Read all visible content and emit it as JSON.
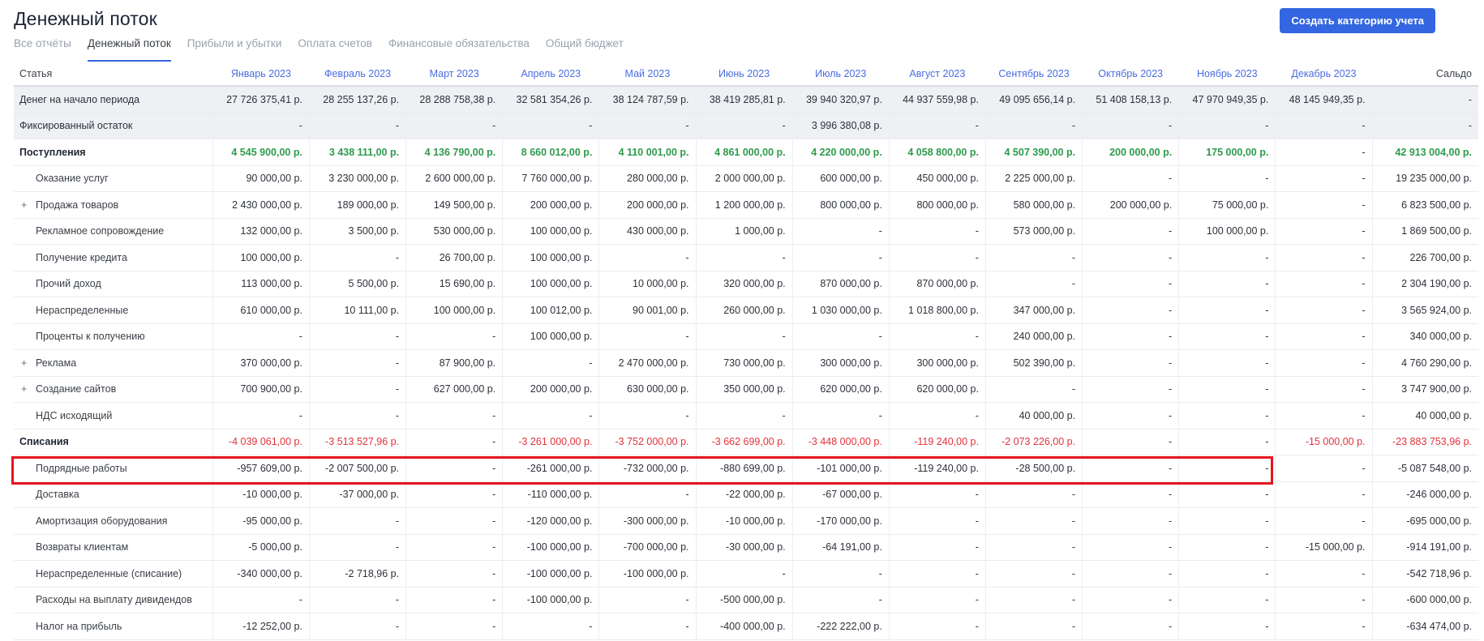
{
  "page_title": "Денежный поток",
  "create_button": "Создать категорию учета",
  "tabs": [
    "Все отчёты",
    "Денежный поток",
    "Прибыли и убытки",
    "Оплата счетов",
    "Финансовые обязательства",
    "Общий бюджет"
  ],
  "table": {
    "header_article": "Статья",
    "months": [
      "Январь 2023",
      "Февраль 2023",
      "Март 2023",
      "Апрель 2023",
      "Май 2023",
      "Июнь 2023",
      "Июль 2023",
      "Август 2023",
      "Сентябрь 2023",
      "Октябрь 2023",
      "Ноябрь 2023",
      "Декабрь 2023"
    ],
    "header_total": "Сальдо",
    "rows": [
      {
        "name": "Денег на начало периода",
        "kind": "shaded",
        "values": [
          "27 726 375,41 р.",
          "28 255 137,26 р.",
          "28 288 758,38 р.",
          "32 581 354,26 р.",
          "38 124 787,59 р.",
          "38 419 285,81 р.",
          "39 940 320,97 р.",
          "44 937 559,98 р.",
          "49 095 656,14 р.",
          "51 408 158,13 р.",
          "47 970 949,35 р.",
          "48 145 949,35 р.",
          "-"
        ]
      },
      {
        "name": "Фиксированный остаток",
        "kind": "shaded",
        "values": [
          "-",
          "-",
          "-",
          "-",
          "-",
          "-",
          "3 996 380,08 р.",
          "-",
          "-",
          "-",
          "-",
          "-",
          "-"
        ]
      },
      {
        "name": "Поступления",
        "kind": "group-inc",
        "values": [
          "4 545 900,00 р.",
          "3 438 111,00 р.",
          "4 136 790,00 р.",
          "8 660 012,00 р.",
          "4 110 001,00 р.",
          "4 861 000,00 р.",
          "4 220 000,00 р.",
          "4 058 800,00 р.",
          "4 507 390,00 р.",
          "200 000,00 р.",
          "175 000,00 р.",
          "-",
          "42 913 004,00 р."
        ]
      },
      {
        "name": "Оказание услуг",
        "kind": "sub",
        "plus": false,
        "values": [
          "90 000,00 р.",
          "3 230 000,00 р.",
          "2 600 000,00 р.",
          "7 760 000,00 р.",
          "280 000,00 р.",
          "2 000 000,00 р.",
          "600 000,00 р.",
          "450 000,00 р.",
          "2 225 000,00 р.",
          "-",
          "-",
          "-",
          "19 235 000,00 р."
        ]
      },
      {
        "name": "Продажа товаров",
        "kind": "sub",
        "plus": true,
        "values": [
          "2 430 000,00 р.",
          "189 000,00 р.",
          "149 500,00 р.",
          "200 000,00 р.",
          "200 000,00 р.",
          "1 200 000,00 р.",
          "800 000,00 р.",
          "800 000,00 р.",
          "580 000,00 р.",
          "200 000,00 р.",
          "75 000,00 р.",
          "-",
          "6 823 500,00 р."
        ]
      },
      {
        "name": "Рекламное сопровождение",
        "kind": "sub",
        "plus": false,
        "values": [
          "132 000,00 р.",
          "3 500,00 р.",
          "530 000,00 р.",
          "100 000,00 р.",
          "430 000,00 р.",
          "1 000,00 р.",
          "-",
          "-",
          "573 000,00 р.",
          "-",
          "100 000,00 р.",
          "-",
          "1 869 500,00 р."
        ]
      },
      {
        "name": "Получение кредита",
        "kind": "sub",
        "plus": false,
        "values": [
          "100 000,00 р.",
          "-",
          "26 700,00 р.",
          "100 000,00 р.",
          "-",
          "-",
          "-",
          "-",
          "-",
          "-",
          "-",
          "-",
          "226 700,00 р."
        ]
      },
      {
        "name": "Прочий доход",
        "kind": "sub",
        "plus": false,
        "values": [
          "113 000,00 р.",
          "5 500,00 р.",
          "15 690,00 р.",
          "100 000,00 р.",
          "10 000,00 р.",
          "320 000,00 р.",
          "870 000,00 р.",
          "870 000,00 р.",
          "-",
          "-",
          "-",
          "-",
          "2 304 190,00 р."
        ]
      },
      {
        "name": "Нераспределенные",
        "kind": "sub",
        "plus": false,
        "values": [
          "610 000,00 р.",
          "10 111,00 р.",
          "100 000,00 р.",
          "100 012,00 р.",
          "90 001,00 р.",
          "260 000,00 р.",
          "1 030 000,00 р.",
          "1 018 800,00 р.",
          "347 000,00 р.",
          "-",
          "-",
          "-",
          "3 565 924,00 р."
        ]
      },
      {
        "name": "Проценты к получению",
        "kind": "sub",
        "plus": false,
        "values": [
          "-",
          "-",
          "-",
          "100 000,00 р.",
          "-",
          "-",
          "-",
          "-",
          "240 000,00 р.",
          "-",
          "-",
          "-",
          "340 000,00 р."
        ]
      },
      {
        "name": "Реклама",
        "kind": "sub",
        "plus": true,
        "values": [
          "370 000,00 р.",
          "-",
          "87 900,00 р.",
          "-",
          "2 470 000,00 р.",
          "730 000,00 р.",
          "300 000,00 р.",
          "300 000,00 р.",
          "502 390,00 р.",
          "-",
          "-",
          "-",
          "4 760 290,00 р."
        ]
      },
      {
        "name": "Создание сайтов",
        "kind": "sub",
        "plus": true,
        "values": [
          "700 900,00 р.",
          "-",
          "627 000,00 р.",
          "200 000,00 р.",
          "630 000,00 р.",
          "350 000,00 р.",
          "620 000,00 р.",
          "620 000,00 р.",
          "-",
          "-",
          "-",
          "-",
          "3 747 900,00 р."
        ]
      },
      {
        "name": "НДС исходящий",
        "kind": "sub",
        "plus": false,
        "values": [
          "-",
          "-",
          "-",
          "-",
          "-",
          "-",
          "-",
          "-",
          "40 000,00 р.",
          "-",
          "-",
          "-",
          "40 000,00 р."
        ]
      },
      {
        "name": "Списания",
        "kind": "group-exp",
        "values": [
          "-4 039 061,00 р.",
          "-3 513 527,96 р.",
          "-",
          "-3 261 000,00 р.",
          "-3 752 000,00 р.",
          "-3 662 699,00 р.",
          "-3 448 000,00 р.",
          "-119 240,00 р.",
          "-2 073 226,00 р.",
          "-",
          "-",
          "-15 000,00 р.",
          "-23 883 753,96 р."
        ]
      },
      {
        "name": "Подрядные работы",
        "kind": "sub",
        "plus": false,
        "values": [
          "-957 609,00 р.",
          "-2 007 500,00 р.",
          "-",
          "-261 000,00 р.",
          "-732 000,00 р.",
          "-880 699,00 р.",
          "-101 000,00 р.",
          "-119 240,00 р.",
          "-28 500,00 р.",
          "-",
          "-",
          "-",
          "-5 087 548,00 р."
        ]
      },
      {
        "name": "Доставка",
        "kind": "sub",
        "plus": false,
        "values": [
          "-10 000,00 р.",
          "-37 000,00 р.",
          "-",
          "-110 000,00 р.",
          "-",
          "-22 000,00 р.",
          "-67 000,00 р.",
          "-",
          "-",
          "-",
          "-",
          "-",
          "-246 000,00 р."
        ]
      },
      {
        "name": "Амортизация оборудования",
        "kind": "sub",
        "plus": false,
        "values": [
          "-95 000,00 р.",
          "-",
          "-",
          "-120 000,00 р.",
          "-300 000,00 р.",
          "-10 000,00 р.",
          "-170 000,00 р.",
          "-",
          "-",
          "-",
          "-",
          "-",
          "-695 000,00 р."
        ]
      },
      {
        "name": "Возвраты клиентам",
        "kind": "sub",
        "plus": false,
        "highlight": true,
        "values": [
          "-5 000,00 р.",
          "-",
          "-",
          "-100 000,00 р.",
          "-700 000,00 р.",
          "-30 000,00 р.",
          "-64 191,00 р.",
          "-",
          "-",
          "-",
          "-",
          "-15 000,00 р.",
          "-914 191,00 р."
        ]
      },
      {
        "name": "Нераспределенные (списание)",
        "kind": "sub",
        "plus": false,
        "values": [
          "-340 000,00 р.",
          "-2 718,96 р.",
          "-",
          "-100 000,00 р.",
          "-100 000,00 р.",
          "-",
          "-",
          "-",
          "-",
          "-",
          "-",
          "-",
          "-542 718,96 р."
        ]
      },
      {
        "name": "Расходы на выплату дивидендов",
        "kind": "sub",
        "plus": false,
        "values": [
          "-",
          "-",
          "-",
          "-100 000,00 р.",
          "-",
          "-500 000,00 р.",
          "-",
          "-",
          "-",
          "-",
          "-",
          "-",
          "-600 000,00 р."
        ]
      },
      {
        "name": "Налог на прибыль",
        "kind": "sub",
        "plus": false,
        "values": [
          "-12 252,00 р.",
          "-",
          "-",
          "-",
          "-",
          "-400 000,00 р.",
          "-222 222,00 р.",
          "-",
          "-",
          "-",
          "-",
          "-",
          "-634 474,00 р."
        ]
      }
    ]
  }
}
